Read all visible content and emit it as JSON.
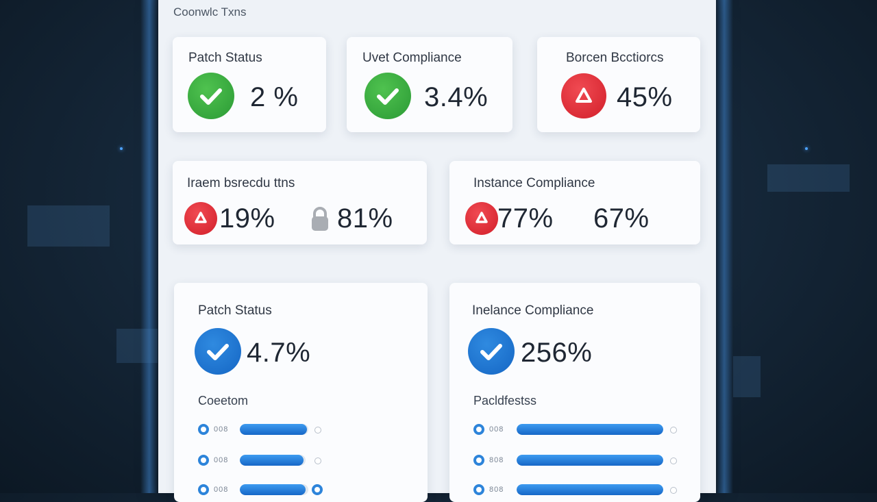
{
  "dashboard": {
    "title": "Coonwlc Txns"
  },
  "top_cards": [
    {
      "title": "Patch Status",
      "value": "2 %",
      "icon": "check-icon",
      "color": "#2fa33a"
    },
    {
      "title": "Uvet Compliance",
      "value": "3.4%",
      "icon": "check-icon",
      "color": "#2fa33a"
    },
    {
      "title": "Borcen Bcctiorcs",
      "value": "45%",
      "icon": "alert-icon",
      "color": "#d8232c"
    }
  ],
  "mid_cards": [
    {
      "title": "Iraem bsrecdu ttns",
      "value_a": "19%",
      "icon_a": "alert-icon",
      "value_b": "81%",
      "icon_b": "lock-icon"
    },
    {
      "title": "Instance Compliance",
      "value_a": "77%",
      "icon_a": "alert-icon",
      "value_b": "67%"
    }
  ],
  "bottom_cards": [
    {
      "title": "Patch Status",
      "value": "4.7%",
      "icon": "check-icon",
      "color": "#1d72cf",
      "section": "Coeetom",
      "rows": [
        {
          "label": "008",
          "progress": 0.98
        },
        {
          "label": "008",
          "progress": 0.97
        },
        {
          "label": "008",
          "progress": 0.96
        }
      ]
    },
    {
      "title": "Inelance Compliance",
      "value": "256%",
      "icon": "check-icon",
      "color": "#1d72cf",
      "section": "Pacldfestss",
      "rows": [
        {
          "label": "008",
          "progress": 1.0
        },
        {
          "label": "808",
          "progress": 1.0
        },
        {
          "label": "808",
          "progress": 1.0
        }
      ]
    }
  ]
}
